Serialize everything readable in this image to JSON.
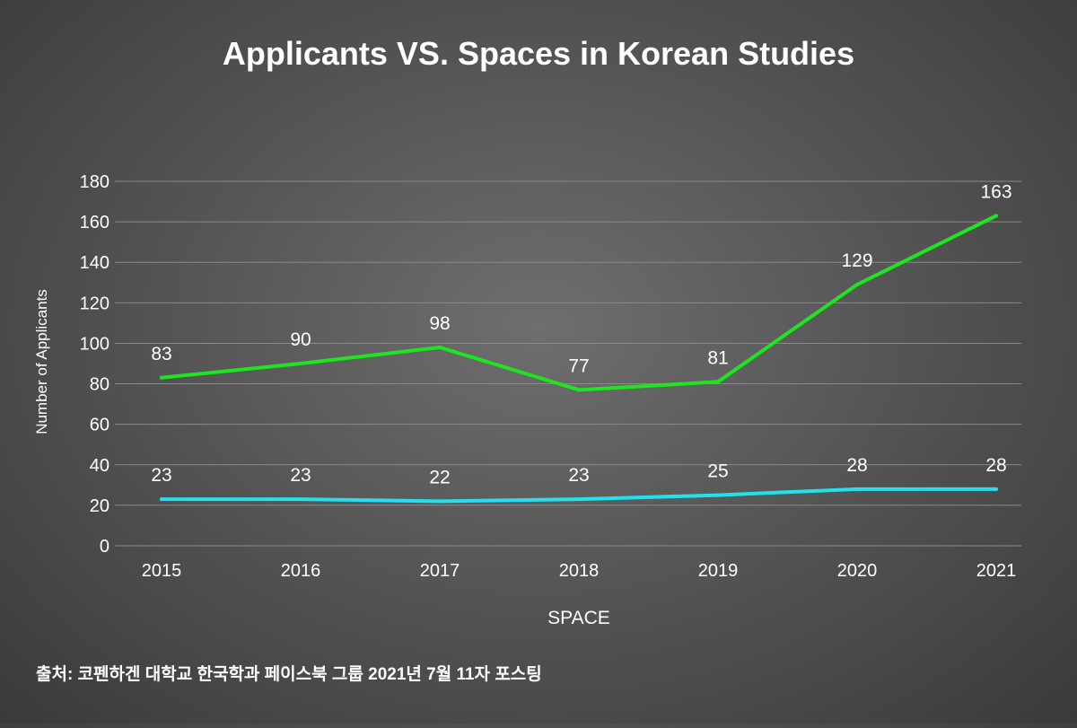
{
  "chart_data": {
    "type": "line",
    "title": "Applicants VS. Spaces in Korean Studies",
    "xlabel": "SPACE",
    "ylabel": "Number of Applicants",
    "categories": [
      "2015",
      "2016",
      "2017",
      "2018",
      "2019",
      "2020",
      "2021"
    ],
    "ylim": [
      0,
      180
    ],
    "yticks": [
      0,
      20,
      40,
      60,
      80,
      100,
      120,
      140,
      160,
      180
    ],
    "grid": true,
    "legend": "none",
    "series": [
      {
        "values": [
          83,
          90,
          98,
          77,
          81,
          129,
          163
        ],
        "color": "#1ee61e"
      },
      {
        "values": [
          23,
          23,
          22,
          23,
          25,
          28,
          28
        ],
        "color": "#22e0ee"
      }
    ]
  },
  "source": "출처: 코펜하겐 대학교 한국학과 페이스북 그룹 2021년 7월 11자 포스팅"
}
